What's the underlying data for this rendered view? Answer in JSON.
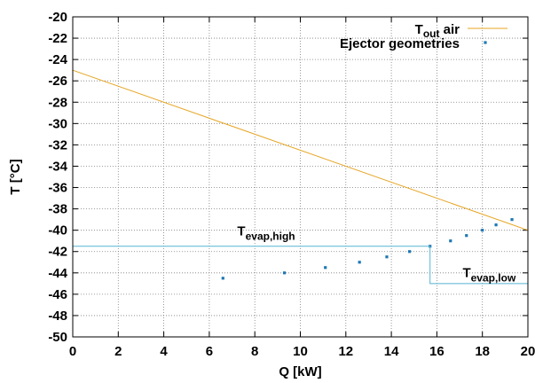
{
  "chart_data": {
    "type": "line",
    "xlabel": "Q [kW]",
    "ylabel": "T [°C]",
    "xlim": [
      0,
      20
    ],
    "ylim": [
      -50,
      -20
    ],
    "xticks": [
      0,
      2,
      4,
      6,
      8,
      10,
      12,
      14,
      16,
      18,
      20
    ],
    "yticks": [
      -50,
      -48,
      -46,
      -44,
      -42,
      -40,
      -38,
      -36,
      -34,
      -32,
      -30,
      -28,
      -26,
      -24,
      -22,
      -20
    ],
    "grid": true,
    "legend_position": "top-right",
    "series": [
      {
        "name": "T_out air",
        "label_main": "T",
        "label_sub": "out",
        "label_tail": " air",
        "kind": "line",
        "color": "#e6a421",
        "x": [
          0,
          20
        ],
        "y": [
          -25,
          -40
        ]
      },
      {
        "name": "Ejector geometries",
        "kind": "scatter",
        "color": "#1f77b4",
        "x": [
          6.6,
          9.3,
          11.1,
          12.6,
          13.8,
          14.8,
          15.7,
          16.6,
          17.3,
          18.0,
          18.6,
          19.3
        ],
        "y": [
          -44.5,
          -44,
          -43.5,
          -43,
          -42.5,
          -42,
          -41.5,
          -41,
          -40.5,
          -40,
          -39.5,
          -39
        ]
      },
      {
        "name": "T_evap",
        "kind": "step",
        "color": "#56b4d3",
        "x": [
          0,
          15.7,
          15.7,
          20
        ],
        "y": [
          -41.5,
          -41.5,
          -45,
          -45
        ]
      }
    ],
    "annotations": [
      {
        "main": "T",
        "sub": "evap,high",
        "x": 8.5,
        "y": -40.5
      },
      {
        "main": "T",
        "sub": "evap,low",
        "x": 18.3,
        "y": -44.4
      }
    ]
  }
}
